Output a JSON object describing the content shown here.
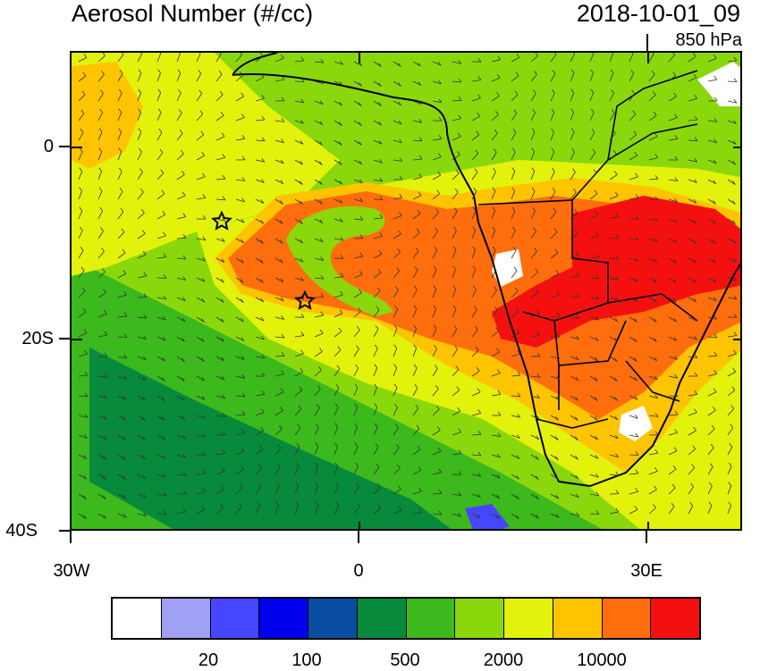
{
  "title": "Aerosol Number (#/cc)",
  "datetime": "2018-10-01_09",
  "level": "850 hPa",
  "map": {
    "lat_ticks": [
      "0",
      "20S",
      "40S"
    ],
    "lon_ticks": [
      "30W",
      "0",
      "30E"
    ],
    "markers": [
      "star",
      "star"
    ]
  },
  "colorbar": {
    "colors": [
      "#ffffff",
      "#a0a0f5",
      "#4646ff",
      "#0000ee",
      "#094da1",
      "#088a3c",
      "#3cb91c",
      "#8ad80c",
      "#e2f20b",
      "#ffc400",
      "#ff6e0c",
      "#f51010"
    ],
    "labels": [
      "20",
      "100",
      "500",
      "2000",
      "10000"
    ]
  }
}
